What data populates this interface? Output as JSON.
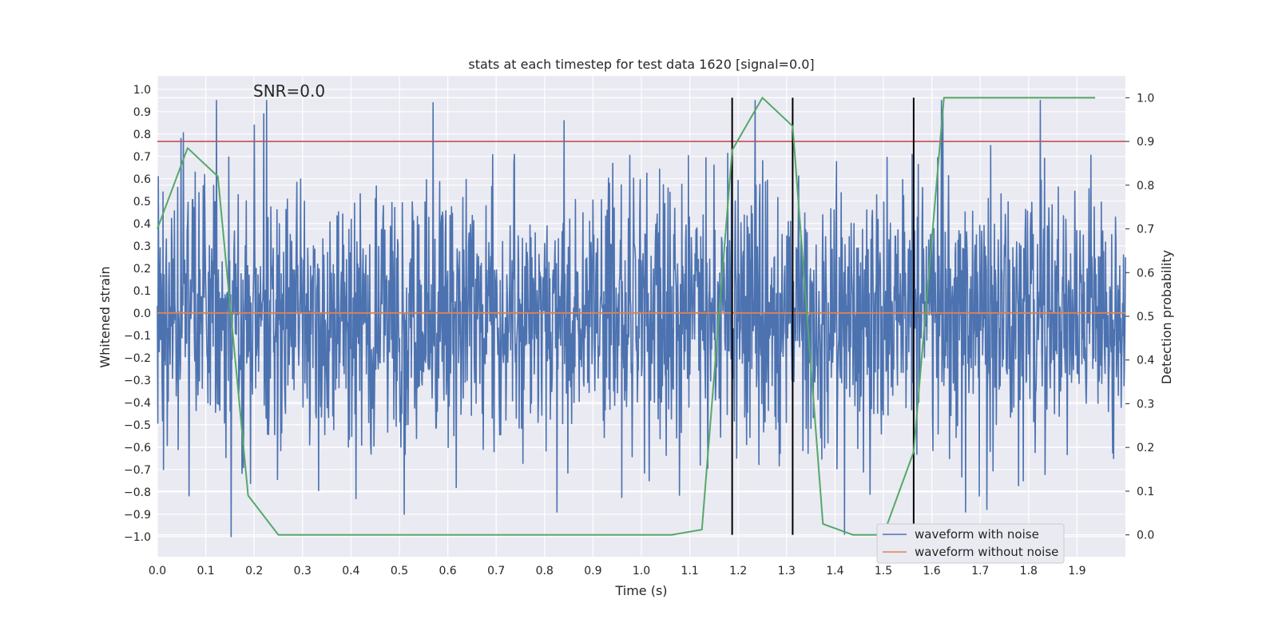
{
  "chart_data": {
    "type": "line",
    "title": "stats at each timestep for test data 1620 [signal=0.0]",
    "annotation": "SNR=0.0",
    "xlabel": "Time (s)",
    "ylabel_left": "Whitened strain",
    "ylabel_right": "Detection probability",
    "xlim": [
      0.0,
      2.0
    ],
    "ylim_left": [
      -1.09,
      1.06
    ],
    "ylim_right": [
      -0.05,
      1.05
    ],
    "x_ticks": [
      "0.0",
      "0.1",
      "0.2",
      "0.3",
      "0.4",
      "0.5",
      "0.6",
      "0.7",
      "0.8",
      "0.9",
      "1.0",
      "1.1",
      "1.2",
      "1.3",
      "1.4",
      "1.5",
      "1.6",
      "1.7",
      "1.8",
      "1.9"
    ],
    "y_ticks_left": [
      "−1.0",
      "−0.9",
      "−0.8",
      "−0.7",
      "−0.6",
      "−0.5",
      "−0.4",
      "−0.3",
      "−0.2",
      "−0.1",
      "0.0",
      "0.1",
      "0.2",
      "0.3",
      "0.4",
      "0.5",
      "0.6",
      "0.7",
      "0.8",
      "0.9",
      "1.0"
    ],
    "y_ticks_right": [
      "0.0",
      "0.1",
      "0.2",
      "0.3",
      "0.4",
      "0.5",
      "0.6",
      "0.7",
      "0.8",
      "0.9",
      "1.0"
    ],
    "grid": true,
    "legend": {
      "position": "lower-right",
      "entries": [
        "waveform with noise",
        "waveform without noise"
      ]
    },
    "colors": {
      "plot_bg": "#EAEAF2",
      "grid": "#FFFFFF",
      "noisy": "#4C72B0",
      "clean": "#DD8452",
      "probability": "#55A868",
      "threshold": "#C44E52",
      "detections": "#000000"
    },
    "series": [
      {
        "name": "waveform with noise",
        "axis": "left",
        "n_samples": 2048,
        "noise_std": 0.3,
        "range": [
          -1.0,
          0.95
        ],
        "peaks": [
          {
            "x": 0.049,
            "y": 0.78
          },
          {
            "x": 0.2,
            "y": 0.84
          },
          {
            "x": 0.22,
            "y": 0.89
          },
          {
            "x": 0.57,
            "y": 0.94
          },
          {
            "x": 0.84,
            "y": 0.86
          },
          {
            "x": 1.62,
            "y": 0.95
          },
          {
            "x": 0.51,
            "y": -0.9
          },
          {
            "x": 0.41,
            "y": -0.83
          },
          {
            "x": 1.42,
            "y": -0.99
          },
          {
            "x": 1.67,
            "y": -0.89
          },
          {
            "x": 0.013,
            "y": -0.7
          }
        ]
      },
      {
        "name": "waveform without noise",
        "axis": "left",
        "x": [
          0.0,
          2.0
        ],
        "y": [
          0.0,
          0.0
        ]
      },
      {
        "axis": "right",
        "x": [
          0.0,
          0.0625,
          0.125,
          0.1875,
          0.25,
          0.3125,
          0.375,
          0.4375,
          0.5,
          0.5625,
          0.625,
          0.6875,
          0.75,
          0.8125,
          0.875,
          0.9375,
          1.0,
          1.0625,
          1.125,
          1.1875,
          1.25,
          1.3125,
          1.375,
          1.4375,
          1.5,
          1.5625,
          1.625,
          1.6875,
          1.75,
          1.8125,
          1.875,
          1.9375
        ],
        "y": [
          0.7,
          0.885,
          0.82,
          0.09,
          0.0,
          0.0,
          0.0,
          0.0,
          0.0,
          0.0,
          0.0,
          0.0,
          0.0,
          0.0,
          0.0,
          0.0,
          0.0,
          0.0,
          0.012,
          0.88,
          1.0,
          0.935,
          0.025,
          0.0,
          0.0,
          0.19,
          1.0,
          1.0,
          1.0,
          1.0,
          1.0,
          1.0
        ]
      }
    ],
    "threshold": {
      "axis": "right",
      "value": 0.9
    },
    "detections": {
      "x": [
        1.1875,
        1.3125,
        1.5625
      ],
      "axis": "right",
      "y_range": [
        0.0,
        1.0
      ]
    }
  }
}
